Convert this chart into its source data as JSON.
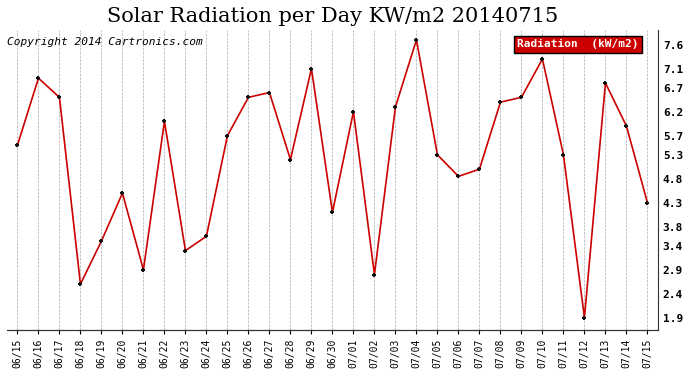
{
  "title": "Solar Radiation per Day KW/m2 20140715",
  "copyright": "Copyright 2014 Cartronics.com",
  "legend_label": "Radiation  (kW/m2)",
  "x_labels": [
    "06/15",
    "06/16",
    "06/17",
    "06/18",
    "06/19",
    "06/20",
    "06/21",
    "06/22",
    "06/23",
    "06/24",
    "06/25",
    "06/26",
    "06/27",
    "06/28",
    "06/29",
    "06/30",
    "07/01",
    "07/02",
    "07/03",
    "07/04",
    "07/05",
    "07/06",
    "07/07",
    "07/08",
    "07/09",
    "07/10",
    "07/11",
    "07/12",
    "07/13",
    "07/14",
    "07/15"
  ],
  "y_values": [
    5.5,
    6.9,
    6.5,
    2.6,
    3.5,
    4.5,
    2.9,
    6.0,
    3.3,
    3.6,
    5.7,
    6.5,
    6.6,
    5.2,
    7.1,
    4.1,
    6.2,
    2.8,
    6.3,
    7.7,
    5.3,
    4.85,
    5.0,
    6.4,
    6.5,
    7.3,
    5.3,
    1.9,
    6.8,
    5.9,
    4.3
  ],
  "line_color": "#cc0000",
  "marker_color": "#111111",
  "background_color": "#ffffff",
  "plot_bg_color": "#ffffff",
  "grid_color": "#aaaaaa",
  "yticks": [
    1.9,
    2.4,
    2.9,
    3.4,
    3.8,
    4.3,
    4.8,
    5.3,
    5.7,
    6.2,
    6.7,
    7.1,
    7.6
  ],
  "ylim": [
    1.65,
    7.9
  ],
  "title_fontsize": 15,
  "copyright_fontsize": 8,
  "legend_bg": "#cc0000",
  "legend_text_color": "#ffffff"
}
